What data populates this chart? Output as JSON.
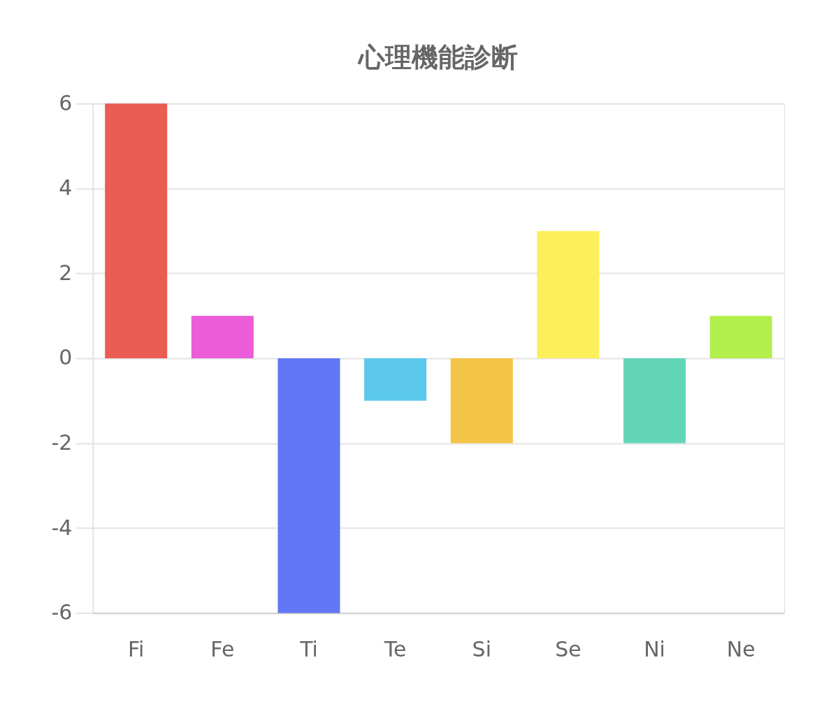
{
  "chart_data": {
    "type": "bar",
    "title": "心理機能診断",
    "categories": [
      "Fi",
      "Fe",
      "Ti",
      "Te",
      "Si",
      "Se",
      "Ni",
      "Ne"
    ],
    "values": [
      6,
      1,
      -6,
      -1,
      -2,
      3,
      -2,
      1
    ],
    "colors": [
      "#eb5c52",
      "#eb5cd9",
      "#6177f5",
      "#5bc8ec",
      "#f5c547",
      "#fcf05a",
      "#63d6b8",
      "#b3ef4c"
    ],
    "ylim": [
      -6,
      6
    ],
    "yticks": [
      -6,
      -4,
      -2,
      0,
      2,
      4,
      6
    ],
    "grid": "y"
  }
}
